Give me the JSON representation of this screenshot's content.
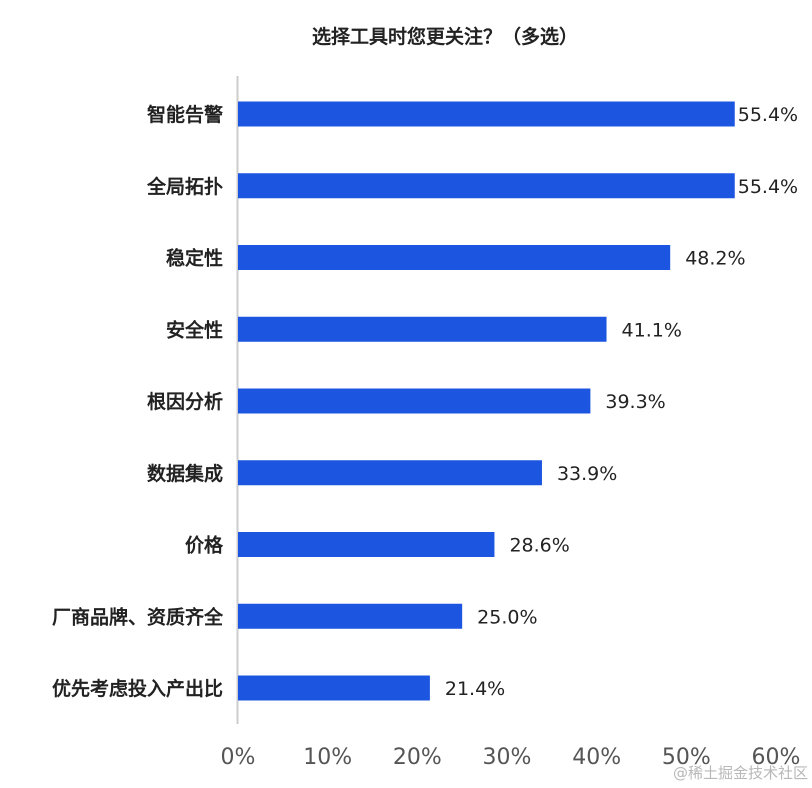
{
  "chart_data": {
    "type": "bar",
    "orientation": "horizontal",
    "title": "选择工具时您更关注？（多选）",
    "xlabel": "",
    "ylabel": "",
    "categories": [
      "智能告警",
      "全局拓扑",
      "稳定性",
      "安全性",
      "根因分析",
      "数据集成",
      "价格",
      "厂商品牌、资质齐全",
      "优先考虑投入产出比"
    ],
    "values": [
      55.4,
      55.4,
      48.2,
      41.1,
      39.3,
      33.9,
      28.6,
      25.0,
      21.4
    ],
    "value_labels": [
      "55.4%",
      "55.4%",
      "48.2%",
      "41.1%",
      "39.3%",
      "33.9%",
      "28.6%",
      "25.0%",
      "21.4%"
    ],
    "xlim": [
      0,
      60
    ],
    "x_ticks": [
      0,
      10,
      20,
      30,
      40,
      50,
      60
    ],
    "x_tick_labels": [
      "0%",
      "10%",
      "20%",
      "30%",
      "40%",
      "50%",
      "60%"
    ],
    "grid": false,
    "legend": "none",
    "bar_color": "#1c55e0",
    "axis_color": "#cccccc"
  },
  "watermark": "@稀土掘金技术社区"
}
